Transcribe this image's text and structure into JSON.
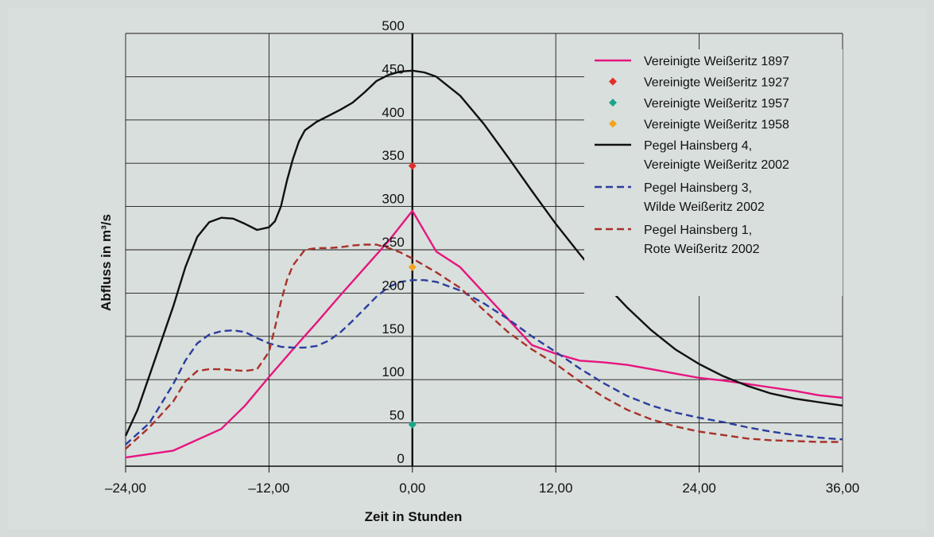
{
  "chart_data": {
    "type": "line",
    "title": "",
    "xlabel": "Zeit in Stunden",
    "ylabel": "Abfluss in m³/s",
    "xlim": [
      -24,
      36
    ],
    "ylim": [
      0,
      500
    ],
    "x_ticks": [
      -24,
      -12,
      0,
      12,
      24,
      36
    ],
    "x_tick_labels": [
      "–24,00",
      "–12,00",
      "0,00",
      "12,00",
      "24,00",
      "36,00"
    ],
    "y_ticks": [
      0,
      50,
      100,
      150,
      200,
      250,
      300,
      350,
      400,
      450,
      500
    ],
    "y_tick_labels": [
      "0",
      "50",
      "100",
      "150",
      "200",
      "250",
      "300",
      "350",
      "400",
      "450",
      "500"
    ],
    "grid": true,
    "legend_position": "right",
    "series": [
      {
        "name": "Vereinigte Weißeritz 1897",
        "style": "solid",
        "color": "#e6157f",
        "x": [
          -24,
          -20,
          -16,
          -14,
          -12,
          -10,
          -8,
          -6,
          -4,
          -2,
          0,
          2,
          4,
          6,
          8,
          10,
          12,
          14,
          16,
          18,
          20,
          22,
          24,
          26,
          28,
          30,
          32,
          34,
          36
        ],
        "y": [
          10,
          18,
          43,
          70,
          103,
          135,
          166,
          198,
          229,
          260,
          295,
          248,
          230,
          200,
          170,
          140,
          130,
          122,
          120,
          117,
          112,
          107,
          102,
          99,
          95,
          91,
          87,
          82,
          79
        ]
      },
      {
        "name": "Vereinigte Weißeritz 1927",
        "style": "marker",
        "color": "#e0302d",
        "x": [
          0
        ],
        "y": [
          347
        ]
      },
      {
        "name": "Vereinigte Weißeritz 1957",
        "style": "marker",
        "color": "#1aa68a",
        "x": [
          0
        ],
        "y": [
          48
        ]
      },
      {
        "name": "Vereinigte Weißeritz 1958",
        "style": "marker",
        "color": "#f2a31f",
        "x": [
          0
        ],
        "y": [
          230
        ]
      },
      {
        "name": "Pegel Hainsberg 4, Vereinigte Weißeritz 2002",
        "legend_lines": [
          "Pegel Hainsberg 4,",
          "Vereinigte Weißeritz 2002"
        ],
        "style": "solid",
        "color": "#111111",
        "x": [
          -24,
          -23,
          -22,
          -21,
          -20,
          -19,
          -18,
          -17,
          -16,
          -15,
          -14,
          -13,
          -12,
          -11.5,
          -11,
          -10.5,
          -10,
          -9.5,
          -9,
          -8,
          -7,
          -6,
          -5,
          -4,
          -3,
          -2,
          -1,
          0,
          1,
          2,
          4,
          6,
          8,
          10,
          12,
          14,
          16,
          18,
          20,
          22,
          24,
          26,
          28,
          30,
          32,
          34,
          36
        ],
        "y": [
          35,
          65,
          105,
          145,
          185,
          230,
          265,
          282,
          287,
          286,
          280,
          273,
          276,
          283,
          300,
          330,
          355,
          375,
          388,
          398,
          405,
          412,
          420,
          432,
          445,
          452,
          456,
          457,
          455,
          450,
          428,
          395,
          357,
          318,
          280,
          245,
          212,
          183,
          157,
          135,
          118,
          104,
          93,
          84,
          78,
          74,
          70
        ]
      },
      {
        "name": "Pegel Hainsberg 3, Wilde Weißeritz 2002",
        "legend_lines": [
          "Pegel Hainsberg 3,",
          "Wilde Weißeritz 2002"
        ],
        "style": "dashed",
        "color": "#2b3d9e",
        "x": [
          -24,
          -22,
          -20,
          -19,
          -18,
          -17,
          -16,
          -15,
          -14,
          -13,
          -12,
          -11,
          -10,
          -9,
          -8,
          -7,
          -6,
          -5,
          -4,
          -3,
          -2,
          -1,
          0,
          1,
          2,
          4,
          6,
          8,
          10,
          12,
          14,
          16,
          18,
          20,
          22,
          24,
          26,
          28,
          30,
          32,
          34,
          36
        ],
        "y": [
          25,
          50,
          95,
          122,
          142,
          152,
          156,
          157,
          155,
          148,
          142,
          138,
          137,
          137,
          139,
          145,
          155,
          168,
          182,
          196,
          207,
          213,
          215,
          215,
          213,
          203,
          188,
          170,
          150,
          132,
          113,
          96,
          81,
          70,
          62,
          56,
          51,
          45,
          40,
          36,
          33,
          31
        ]
      },
      {
        "name": "Pegel Hainsberg 1, Rote Weißeritz 2002",
        "legend_lines": [
          "Pegel Hainsberg 1,",
          "Rote Weißeritz 2002"
        ],
        "style": "dashed",
        "color": "#a8312b",
        "x": [
          -24,
          -22,
          -20,
          -19,
          -18,
          -17,
          -16,
          -15,
          -14,
          -13,
          -12,
          -11.5,
          -11,
          -10.5,
          -10,
          -9,
          -8,
          -7,
          -6,
          -5,
          -4,
          -3,
          -2,
          -1,
          0,
          1,
          2,
          4,
          6,
          8,
          10,
          12,
          14,
          16,
          18,
          20,
          22,
          24,
          26,
          28,
          30,
          32,
          34,
          36
        ],
        "y": [
          20,
          45,
          75,
          98,
          110,
          112,
          112,
          111,
          110,
          112,
          132,
          160,
          190,
          215,
          232,
          250,
          252,
          252,
          253,
          255,
          256,
          256,
          252,
          247,
          240,
          232,
          224,
          206,
          180,
          155,
          135,
          118,
          98,
          80,
          65,
          54,
          46,
          40,
          36,
          32,
          30,
          29,
          28,
          28
        ]
      }
    ]
  }
}
